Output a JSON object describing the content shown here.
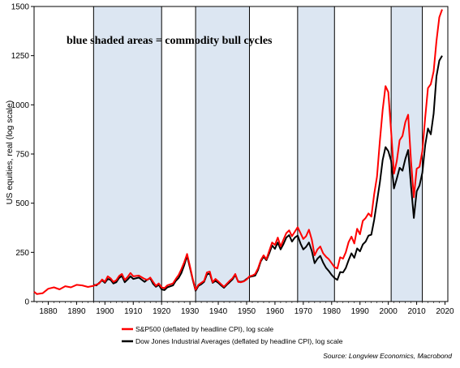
{
  "chart_data": {
    "type": "line",
    "ylabel": "US equities, real (log scale)",
    "xlabel": "",
    "xlim": [
      1875,
      2021
    ],
    "ylim": [
      0,
      1500
    ],
    "x_ticks": [
      1880,
      1890,
      1900,
      1910,
      1920,
      1930,
      1940,
      1950,
      1960,
      1970,
      1980,
      1990,
      2000,
      2010,
      2020
    ],
    "y_ticks": [
      0,
      250,
      500,
      750,
      1000,
      1250,
      1500
    ],
    "annotation": "blue shaded areas = commodity bull cycles",
    "shaded_regions": [
      [
        1896,
        1920
      ],
      [
        1932,
        1951
      ],
      [
        1968,
        1981
      ],
      [
        2001,
        2012
      ]
    ],
    "shade_color": "#dce6f2",
    "legend_position": "bottom-left",
    "source": "Source: Longview Economics, Macrobond",
    "series": [
      {
        "name": "S&P500 (deflated by headline CPI), log scale",
        "color": "#ff0000",
        "points": [
          [
            1875,
            50
          ],
          [
            1876,
            38
          ],
          [
            1878,
            42
          ],
          [
            1880,
            65
          ],
          [
            1882,
            72
          ],
          [
            1884,
            62
          ],
          [
            1886,
            78
          ],
          [
            1888,
            72
          ],
          [
            1890,
            85
          ],
          [
            1892,
            82
          ],
          [
            1894,
            74
          ],
          [
            1896,
            80
          ],
          [
            1898,
            92
          ],
          [
            1899,
            112
          ],
          [
            1900,
            100
          ],
          [
            1901,
            128
          ],
          [
            1902,
            118
          ],
          [
            1903,
            100
          ],
          [
            1904,
            108
          ],
          [
            1905,
            130
          ],
          [
            1906,
            140
          ],
          [
            1907,
            110
          ],
          [
            1908,
            125
          ],
          [
            1909,
            145
          ],
          [
            1910,
            128
          ],
          [
            1912,
            132
          ],
          [
            1914,
            115
          ],
          [
            1915,
            110
          ],
          [
            1916,
            122
          ],
          [
            1917,
            100
          ],
          [
            1918,
            80
          ],
          [
            1919,
            92
          ],
          [
            1920,
            72
          ],
          [
            1921,
            68
          ],
          [
            1922,
            82
          ],
          [
            1924,
            92
          ],
          [
            1925,
            115
          ],
          [
            1926,
            135
          ],
          [
            1927,
            165
          ],
          [
            1928,
            200
          ],
          [
            1929,
            242
          ],
          [
            1930,
            180
          ],
          [
            1931,
            115
          ],
          [
            1932,
            60
          ],
          [
            1933,
            85
          ],
          [
            1934,
            95
          ],
          [
            1935,
            105
          ],
          [
            1936,
            148
          ],
          [
            1937,
            152
          ],
          [
            1938,
            98
          ],
          [
            1939,
            115
          ],
          [
            1940,
            102
          ],
          [
            1941,
            88
          ],
          [
            1942,
            75
          ],
          [
            1943,
            90
          ],
          [
            1944,
            105
          ],
          [
            1945,
            118
          ],
          [
            1946,
            140
          ],
          [
            1947,
            100
          ],
          [
            1948,
            98
          ],
          [
            1949,
            102
          ],
          [
            1950,
            112
          ],
          [
            1951,
            128
          ],
          [
            1952,
            132
          ],
          [
            1953,
            140
          ],
          [
            1954,
            168
          ],
          [
            1955,
            210
          ],
          [
            1956,
            235
          ],
          [
            1957,
            215
          ],
          [
            1958,
            258
          ],
          [
            1959,
            300
          ],
          [
            1960,
            288
          ],
          [
            1961,
            325
          ],
          [
            1962,
            280
          ],
          [
            1963,
            315
          ],
          [
            1964,
            348
          ],
          [
            1965,
            362
          ],
          [
            1966,
            332
          ],
          [
            1967,
            355
          ],
          [
            1968,
            378
          ],
          [
            1969,
            348
          ],
          [
            1970,
            318
          ],
          [
            1971,
            332
          ],
          [
            1972,
            365
          ],
          [
            1973,
            315
          ],
          [
            1974,
            235
          ],
          [
            1975,
            265
          ],
          [
            1976,
            280
          ],
          [
            1977,
            245
          ],
          [
            1978,
            228
          ],
          [
            1979,
            215
          ],
          [
            1980,
            195
          ],
          [
            1981,
            175
          ],
          [
            1982,
            168
          ],
          [
            1983,
            225
          ],
          [
            1984,
            218
          ],
          [
            1985,
            250
          ],
          [
            1986,
            302
          ],
          [
            1987,
            330
          ],
          [
            1988,
            295
          ],
          [
            1989,
            370
          ],
          [
            1990,
            342
          ],
          [
            1991,
            410
          ],
          [
            1992,
            425
          ],
          [
            1993,
            448
          ],
          [
            1994,
            432
          ],
          [
            1995,
            545
          ],
          [
            1996,
            635
          ],
          [
            1997,
            815
          ],
          [
            1998,
            975
          ],
          [
            1999,
            1095
          ],
          [
            2000,
            1065
          ],
          [
            2001,
            865
          ],
          [
            2002,
            650
          ],
          [
            2003,
            715
          ],
          [
            2004,
            820
          ],
          [
            2005,
            842
          ],
          [
            2006,
            912
          ],
          [
            2007,
            950
          ],
          [
            2008,
            715
          ],
          [
            2009,
            530
          ],
          [
            2010,
            675
          ],
          [
            2011,
            685
          ],
          [
            2012,
            765
          ],
          [
            2013,
            935
          ],
          [
            2014,
            1085
          ],
          [
            2015,
            1105
          ],
          [
            2016,
            1170
          ],
          [
            2017,
            1325
          ],
          [
            2018,
            1445
          ],
          [
            2019,
            1485
          ]
        ]
      },
      {
        "name": "Dow Jones Industrial Averages (deflated by headline CPI), log scale",
        "color": "#000000",
        "points": [
          [
            1896,
            85
          ],
          [
            1897,
            82
          ],
          [
            1899,
            108
          ],
          [
            1900,
            95
          ],
          [
            1901,
            115
          ],
          [
            1902,
            110
          ],
          [
            1903,
            92
          ],
          [
            1904,
            98
          ],
          [
            1905,
            120
          ],
          [
            1906,
            130
          ],
          [
            1907,
            98
          ],
          [
            1908,
            112
          ],
          [
            1909,
            128
          ],
          [
            1910,
            115
          ],
          [
            1912,
            122
          ],
          [
            1914,
            100
          ],
          [
            1915,
            112
          ],
          [
            1916,
            118
          ],
          [
            1917,
            90
          ],
          [
            1918,
            75
          ],
          [
            1919,
            85
          ],
          [
            1920,
            62
          ],
          [
            1921,
            58
          ],
          [
            1922,
            72
          ],
          [
            1924,
            82
          ],
          [
            1925,
            105
          ],
          [
            1926,
            120
          ],
          [
            1927,
            145
          ],
          [
            1928,
            185
          ],
          [
            1929,
            232
          ],
          [
            1930,
            172
          ],
          [
            1931,
            110
          ],
          [
            1932,
            55
          ],
          [
            1933,
            80
          ],
          [
            1934,
            88
          ],
          [
            1935,
            100
          ],
          [
            1936,
            138
          ],
          [
            1937,
            142
          ],
          [
            1938,
            95
          ],
          [
            1939,
            105
          ],
          [
            1940,
            95
          ],
          [
            1941,
            82
          ],
          [
            1942,
            70
          ],
          [
            1943,
            85
          ],
          [
            1944,
            98
          ],
          [
            1945,
            112
          ],
          [
            1946,
            135
          ],
          [
            1947,
            102
          ],
          [
            1948,
            100
          ],
          [
            1949,
            104
          ],
          [
            1950,
            115
          ],
          [
            1951,
            125
          ],
          [
            1952,
            128
          ],
          [
            1953,
            132
          ],
          [
            1954,
            160
          ],
          [
            1955,
            205
          ],
          [
            1956,
            228
          ],
          [
            1957,
            210
          ],
          [
            1958,
            245
          ],
          [
            1959,
            285
          ],
          [
            1960,
            268
          ],
          [
            1961,
            300
          ],
          [
            1962,
            265
          ],
          [
            1963,
            292
          ],
          [
            1964,
            325
          ],
          [
            1965,
            338
          ],
          [
            1966,
            305
          ],
          [
            1967,
            325
          ],
          [
            1968,
            335
          ],
          [
            1969,
            295
          ],
          [
            1970,
            265
          ],
          [
            1971,
            278
          ],
          [
            1972,
            300
          ],
          [
            1973,
            258
          ],
          [
            1974,
            195
          ],
          [
            1975,
            218
          ],
          [
            1976,
            232
          ],
          [
            1977,
            198
          ],
          [
            1978,
            172
          ],
          [
            1979,
            155
          ],
          [
            1980,
            135
          ],
          [
            1981,
            120
          ],
          [
            1982,
            110
          ],
          [
            1983,
            150
          ],
          [
            1984,
            148
          ],
          [
            1985,
            170
          ],
          [
            1986,
            210
          ],
          [
            1987,
            245
          ],
          [
            1988,
            222
          ],
          [
            1989,
            270
          ],
          [
            1990,
            255
          ],
          [
            1991,
            290
          ],
          [
            1992,
            305
          ],
          [
            1993,
            335
          ],
          [
            1994,
            340
          ],
          [
            1995,
            415
          ],
          [
            1996,
            510
          ],
          [
            1997,
            605
          ],
          [
            1998,
            720
          ],
          [
            1999,
            785
          ],
          [
            2000,
            765
          ],
          [
            2001,
            715
          ],
          [
            2002,
            575
          ],
          [
            2003,
            625
          ],
          [
            2004,
            680
          ],
          [
            2005,
            665
          ],
          [
            2006,
            725
          ],
          [
            2007,
            770
          ],
          [
            2008,
            590
          ],
          [
            2009,
            425
          ],
          [
            2010,
            560
          ],
          [
            2011,
            590
          ],
          [
            2012,
            655
          ],
          [
            2013,
            795
          ],
          [
            2014,
            880
          ],
          [
            2015,
            850
          ],
          [
            2016,
            955
          ],
          [
            2017,
            1145
          ],
          [
            2018,
            1225
          ],
          [
            2019,
            1250
          ]
        ]
      }
    ]
  }
}
